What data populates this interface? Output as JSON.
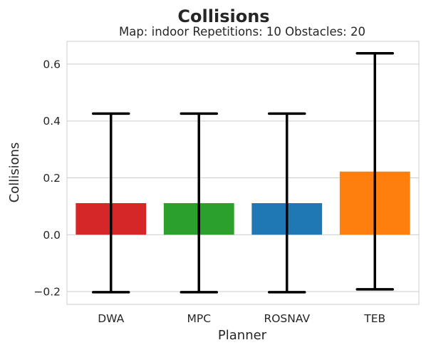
{
  "chart_data": {
    "type": "bar",
    "title": "Collisions",
    "subtitle": "Map: indoor Repetitions: 10 Obstacles: 20",
    "xlabel": "Planner",
    "ylabel": "Collisions",
    "categories": [
      "DWA",
      "MPC",
      "ROSNAV",
      "TEB"
    ],
    "values": [
      0.111,
      0.111,
      0.111,
      0.222
    ],
    "error_low": [
      -0.202,
      -0.202,
      -0.202,
      -0.192
    ],
    "error_high": [
      0.426,
      0.426,
      0.426,
      0.638
    ],
    "colors": [
      "#d62728",
      "#2ca02c",
      "#1f77b4",
      "#ff7f0e"
    ],
    "ylim": [
      -0.245,
      0.68
    ],
    "yticks": [
      -0.2,
      0.0,
      0.2,
      0.4,
      0.6
    ],
    "ytick_labels": [
      "−0.2",
      "0.0",
      "0.2",
      "0.4",
      "0.6"
    ],
    "grid": "horizontal",
    "legend": "none"
  }
}
